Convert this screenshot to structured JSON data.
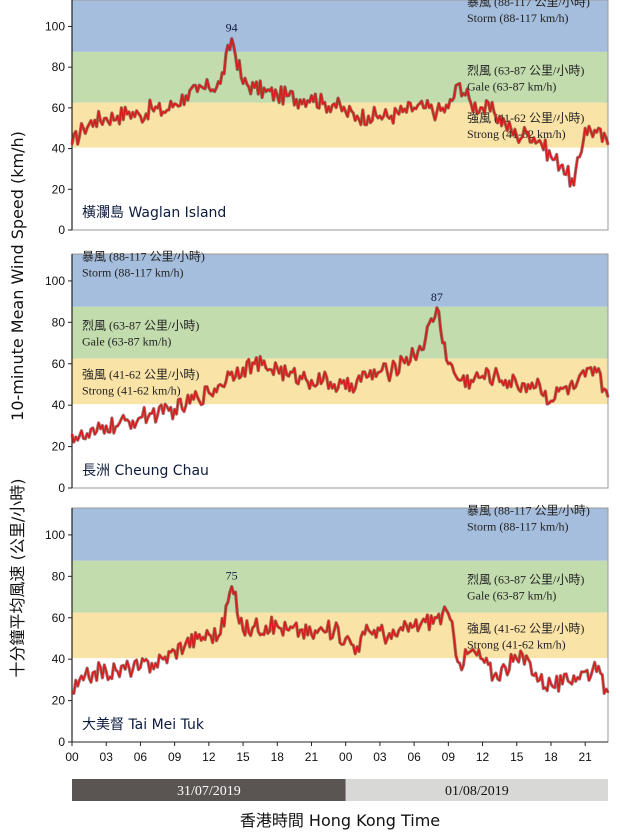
{
  "ylabel_en": "10-minute Mean Wind Speed (km/h)",
  "ylabel_zh": "十分鐘平均風速 (公里/小時)",
  "xlabel": "香港時間 Hong Kong Time",
  "colors": {
    "storm_band": "#a6bedd",
    "gale_band": "#c3dcae",
    "strong_band": "#fae3a6",
    "series": "#d91c1c",
    "date1_bg": "#5a5552",
    "date2_bg": "#d8d8d6"
  },
  "bands": [
    {
      "key": "storm",
      "min": 88,
      "max": 117,
      "zh": "暴風 (88-117 公里/小時)",
      "en": "Storm (88-117 km/h)"
    },
    {
      "key": "gale",
      "min": 63,
      "max": 87,
      "zh": "烈風 (63-87 公里/小時)",
      "en": "Gale (63-87 km/h)"
    },
    {
      "key": "strong",
      "min": 41,
      "max": 62,
      "zh": "強風 (41-62 公里/小時)",
      "en": "Strong (41-62 km/h)"
    }
  ],
  "x_ticks": [
    "00",
    "03",
    "06",
    "09",
    "12",
    "15",
    "18",
    "21",
    "00",
    "03",
    "06",
    "09",
    "12",
    "15",
    "18",
    "21"
  ],
  "dates": [
    "31/07/2019",
    "01/08/2019"
  ],
  "chart_data": [
    {
      "type": "line",
      "station": "橫瀾島 Waglan Island",
      "peak_label": "94",
      "ylim": [
        0,
        100
      ],
      "yticks": [
        0,
        20,
        40,
        60,
        80,
        100
      ],
      "xlim_hours": [
        0,
        47
      ],
      "band_label_position": "right",
      "x_hours": [
        0,
        1,
        2,
        3,
        4,
        5,
        6,
        7,
        8,
        9,
        10,
        11,
        12,
        13,
        14,
        15,
        16,
        17,
        18,
        19,
        20,
        21,
        22,
        23,
        24,
        25,
        26,
        27,
        28,
        29,
        30,
        31,
        32,
        33,
        34,
        35,
        36,
        37,
        38,
        39,
        40,
        41,
        42,
        43,
        44,
        45,
        46,
        47
      ],
      "values": [
        42,
        50,
        54,
        55,
        56,
        58,
        56,
        60,
        58,
        62,
        66,
        68,
        70,
        72,
        94,
        72,
        70,
        68,
        66,
        66,
        64,
        66,
        62,
        62,
        58,
        56,
        56,
        56,
        56,
        58,
        60,
        60,
        58,
        60,
        72,
        62,
        60,
        58,
        52,
        46,
        48,
        44,
        36,
        32,
        22,
        50,
        48,
        42
      ]
    },
    {
      "type": "line",
      "station": "長洲 Cheung Chau",
      "peak_label": "87",
      "ylim": [
        0,
        100
      ],
      "yticks": [
        0,
        20,
        40,
        60,
        80,
        100
      ],
      "xlim_hours": [
        0,
        47
      ],
      "band_label_position": "left",
      "x_hours": [
        0,
        1,
        2,
        3,
        4,
        5,
        6,
        7,
        8,
        9,
        10,
        11,
        12,
        13,
        14,
        15,
        16,
        17,
        18,
        19,
        20,
        21,
        22,
        23,
        24,
        25,
        26,
        27,
        28,
        29,
        30,
        31,
        32,
        33,
        34,
        35,
        36,
        37,
        38,
        39,
        40,
        41,
        42,
        43,
        44,
        45,
        46,
        47
      ],
      "values": [
        26,
        24,
        26,
        30,
        30,
        32,
        34,
        36,
        36,
        38,
        40,
        44,
        46,
        50,
        56,
        58,
        60,
        58,
        58,
        54,
        54,
        52,
        52,
        50,
        48,
        52,
        54,
        56,
        56,
        62,
        64,
        72,
        87,
        60,
        52,
        52,
        54,
        54,
        52,
        50,
        50,
        50,
        42,
        48,
        48,
        54,
        56,
        44
      ]
    },
    {
      "type": "line",
      "station": "大美督 Tai Mei Tuk",
      "peak_label": "75",
      "ylim": [
        0,
        100
      ],
      "yticks": [
        0,
        20,
        40,
        60,
        80,
        100
      ],
      "xlim_hours": [
        0,
        47
      ],
      "band_label_position": "right",
      "x_hours": [
        0,
        1,
        2,
        3,
        4,
        5,
        6,
        7,
        8,
        9,
        10,
        11,
        12,
        13,
        14,
        15,
        16,
        17,
        18,
        19,
        20,
        21,
        22,
        23,
        24,
        25,
        26,
        27,
        28,
        29,
        30,
        31,
        32,
        33,
        34,
        35,
        36,
        37,
        38,
        39,
        40,
        41,
        42,
        43,
        44,
        45,
        46,
        47
      ],
      "values": [
        24,
        30,
        34,
        34,
        34,
        36,
        36,
        38,
        40,
        44,
        48,
        50,
        52,
        52,
        75,
        54,
        56,
        56,
        56,
        54,
        54,
        52,
        54,
        54,
        50,
        46,
        54,
        54,
        50,
        54,
        56,
        58,
        60,
        62,
        38,
        44,
        40,
        32,
        36,
        40,
        40,
        30,
        28,
        28,
        32,
        34,
        34,
        24
      ]
    }
  ]
}
